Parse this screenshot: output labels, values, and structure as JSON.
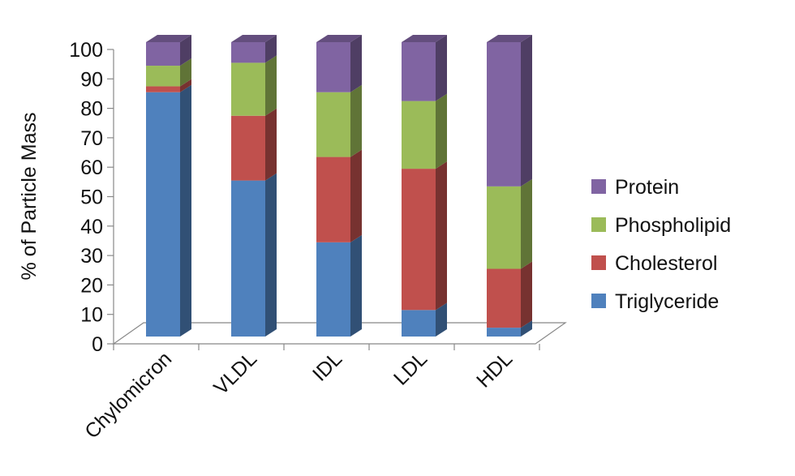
{
  "chart_data": {
    "type": "bar",
    "stacked": true,
    "three_d": true,
    "categories": [
      "Chylomicron",
      "VLDL",
      "IDL",
      "LDL",
      "HDL"
    ],
    "series": [
      {
        "name": "Triglyceride",
        "color": "#4F81BD",
        "values": [
          83,
          53,
          32,
          9,
          3
        ]
      },
      {
        "name": "Cholesterol",
        "color": "#C0504D",
        "values": [
          2,
          22,
          29,
          48,
          20
        ]
      },
      {
        "name": "Phospholipid",
        "color": "#9BBB59",
        "values": [
          7,
          18,
          22,
          23,
          28
        ]
      },
      {
        "name": "Protein",
        "color": "#8064A2",
        "values": [
          8,
          7,
          17,
          20,
          49
        ]
      }
    ],
    "ylabel": "% of Particle Mass",
    "xlabel": "",
    "ylim": [
      0,
      100
    ],
    "yticks": [
      "0",
      "10",
      "20",
      "30",
      "40",
      "50",
      "60",
      "70",
      "80",
      "90",
      "100"
    ],
    "legend_position": "right",
    "legend_order": [
      "Protein",
      "Phospholipid",
      "Cholesterol",
      "Triglyceride"
    ],
    "grid": false
  }
}
